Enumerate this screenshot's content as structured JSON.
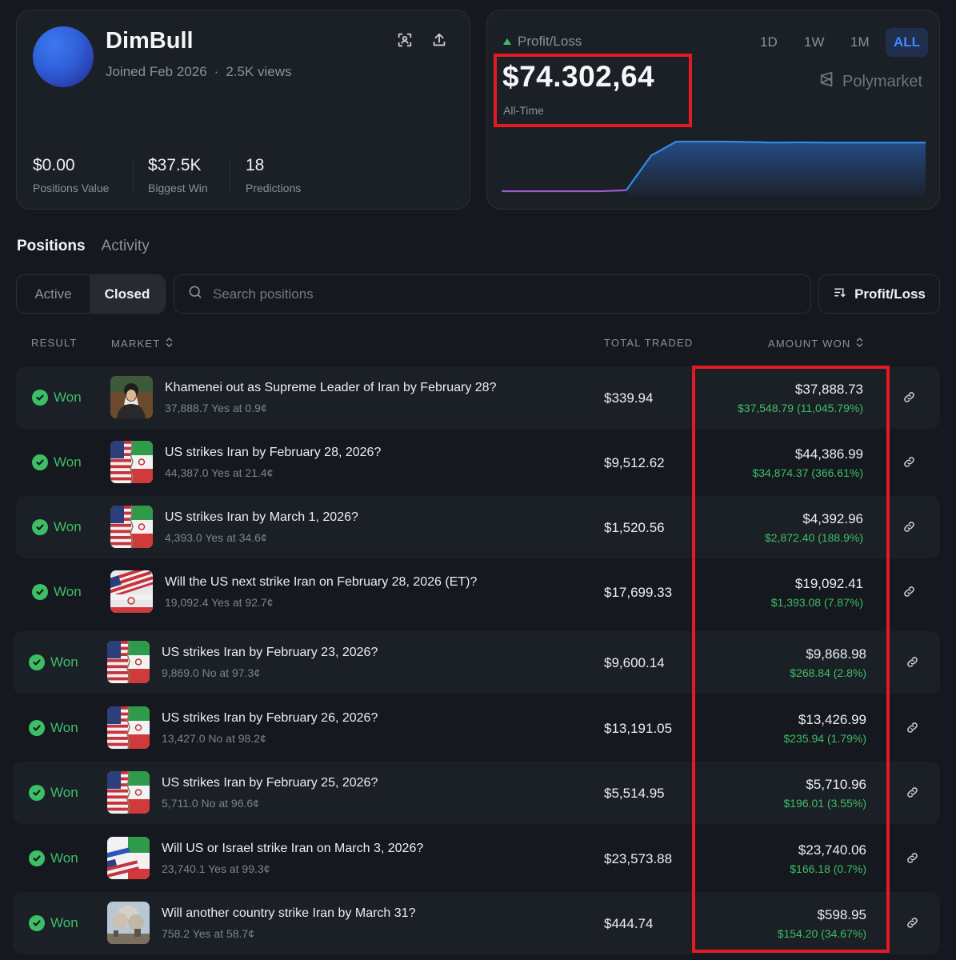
{
  "profile": {
    "username": "DimBull",
    "joined": "Joined Feb 2026",
    "views": "2.5K views",
    "stats": [
      {
        "value": "$0.00",
        "label": "Positions Value"
      },
      {
        "value": "$37.5K",
        "label": "Biggest Win"
      },
      {
        "value": "18",
        "label": "Predictions"
      }
    ]
  },
  "pnl": {
    "label": "Profit/Loss",
    "value": "$74.302,64",
    "sublabel": "All-Time",
    "ranges": [
      "1D",
      "1W",
      "1M",
      "ALL"
    ],
    "active_range": "ALL",
    "brand": "Polymarket"
  },
  "chart_data": {
    "type": "area",
    "title": "",
    "xlabel": "",
    "ylabel": "",
    "y": [
      0.0,
      0.0,
      0.0,
      0.0,
      0.0,
      0.02,
      0.72,
      1.0,
      1.0,
      1.0,
      0.99,
      0.98,
      0.985,
      0.98,
      0.98,
      0.98,
      0.98,
      0.98
    ],
    "note_colors": {
      "pre": "#9b59d0",
      "post": "#2f8be6"
    }
  },
  "tabs": {
    "positions": "Positions",
    "activity": "Activity"
  },
  "filters": {
    "active": "Active",
    "closed": "Closed"
  },
  "search": {
    "placeholder": "Search positions"
  },
  "sort_button": "Profit/Loss",
  "columns": {
    "result": "RESULT",
    "market": "MARKET",
    "total_traded": "TOTAL TRADED",
    "amount_won": "AMOUNT WON"
  },
  "rows": [
    {
      "result": "Won",
      "title": "Khamenei out as Supreme Leader of Iran by February 28?",
      "sub": "37,888.7 Yes at 0.9¢",
      "traded": "$339.94",
      "won": "$37,888.73",
      "gain": "$37,548.79 (11,045.79%)",
      "thumb": "portrait"
    },
    {
      "result": "Won",
      "title": "US strikes Iran by February 28, 2026?",
      "sub": "44,387.0 Yes at 21.4¢",
      "traded": "$9,512.62",
      "won": "$44,386.99",
      "gain": "$34,874.37 (366.61%)",
      "thumb": "flags"
    },
    {
      "result": "Won",
      "title": "US strikes Iran by March 1, 2026?",
      "sub": "4,393.0 Yes at 34.6¢",
      "traded": "$1,520.56",
      "won": "$4,392.96",
      "gain": "$2,872.40 (188.9%)",
      "thumb": "flags"
    },
    {
      "result": "Won",
      "title": "Will the US next strike Iran on February 28, 2026 (ET)?",
      "sub": "19,092.4 Yes at 92.7¢",
      "traded": "$17,699.33",
      "won": "$19,092.41",
      "gain": "$1,393.08 (7.87%)",
      "thumb": "flags-wave"
    },
    {
      "result": "Won",
      "title": "US strikes Iran by February 23, 2026?",
      "sub": "9,869.0 No at 97.3¢",
      "traded": "$9,600.14",
      "won": "$9,868.98",
      "gain": "$268.84 (2.8%)",
      "thumb": "flags"
    },
    {
      "result": "Won",
      "title": "US strikes Iran by February 26, 2026?",
      "sub": "13,427.0 No at 98.2¢",
      "traded": "$13,191.05",
      "won": "$13,426.99",
      "gain": "$235.94 (1.79%)",
      "thumb": "flags"
    },
    {
      "result": "Won",
      "title": "US strikes Iran by February 25, 2026?",
      "sub": "5,711.0 No at 96.6¢",
      "traded": "$5,514.95",
      "won": "$5,710.96",
      "gain": "$196.01 (3.55%)",
      "thumb": "flags"
    },
    {
      "result": "Won",
      "title": "Will US or Israel strike Iran on March 3, 2026?",
      "sub": "23,740.1 Yes at 99.3¢",
      "traded": "$23,573.88",
      "won": "$23,740.06",
      "gain": "$166.18 (0.7%)",
      "thumb": "flags-three"
    },
    {
      "result": "Won",
      "title": "Will another country strike Iran by March 31?",
      "sub": "758.2 Yes at 58.7¢",
      "traded": "$444.74",
      "won": "$598.95",
      "gain": "$154.20 (34.67%)",
      "thumb": "smoke"
    }
  ]
}
